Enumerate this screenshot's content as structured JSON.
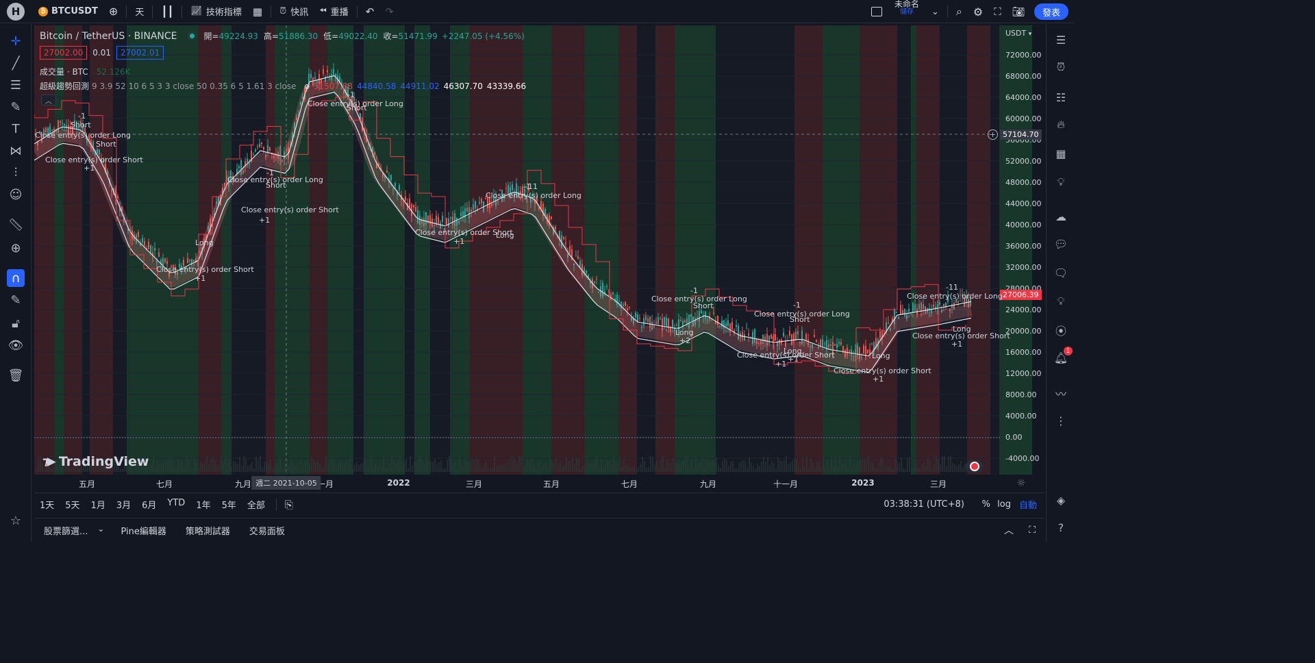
{
  "topbar": {
    "logo": "H",
    "symbol": "BTCUSDT",
    "interval": "天",
    "indicators": "技術指標",
    "alert": "快訊",
    "replay": "重播",
    "layout_title": "未命名",
    "layout_sub": "儲存",
    "publish": "發表"
  },
  "legend": {
    "title": "Bitcoin / TetherUS · BINANCE",
    "open_label": "開=",
    "open": "49224.93",
    "high_label": "高=",
    "high": "51886.30",
    "low_label": "低=",
    "low": "49022.40",
    "close_label": "收=",
    "close": "51471.99",
    "change": "+2247.05 (+4.56%)",
    "sell_price": "27002.00",
    "spread": "0.01",
    "buy_price": "27002.01",
    "volume_label": "成交量 · BTC",
    "volume_value": "52.126K",
    "indicator_name": "超級趨勢回測",
    "indicator_params": "9 3.9 52 10 6 5 3 3 close 50 0.35 6 5 1.61 3 close",
    "indicator_symbol": "ø",
    "ind_v1": "51507.88",
    "ind_v2": "44840.58",
    "ind_v3": "44911.02",
    "ind_v4": "46307.70",
    "ind_v5": "43339.66"
  },
  "price_axis": {
    "currency": "USDT",
    "labels": [
      "72000.00",
      "68000.00",
      "64000.00",
      "60000.00",
      "56000.00",
      "52000.00",
      "48000.00",
      "44000.00",
      "40000.00",
      "36000.00",
      "32000.00",
      "28000.00",
      "24000.00",
      "20000.00",
      "16000.00",
      "12000.00",
      "8000.00",
      "4000.00",
      "0.00",
      "-4000.00"
    ],
    "crosshair_price": "57104.70",
    "last_price": "27006.39"
  },
  "time_axis": {
    "labels": [
      "五月",
      "七月",
      "九月",
      "一月",
      "2022",
      "三月",
      "五月",
      "七月",
      "九月",
      "十一月",
      "2023",
      "三月"
    ],
    "cursor_date": "週二 2021-10-05"
  },
  "ranges": [
    "1天",
    "5天",
    "1月",
    "3月",
    "6月",
    "YTD",
    "1年",
    "5年",
    "全部"
  ],
  "clock": "03:38:31 (UTC+8)",
  "scale": {
    "pct": "%",
    "log": "log",
    "auto": "自動"
  },
  "bottom_tabs": [
    "股票篩選...",
    "Pine編輯器",
    "策略測試器",
    "交易面板"
  ],
  "watermark": "TradingView",
  "notification_count": "1",
  "annotations": [
    "-1",
    "Short",
    "Close entry(s) order Long",
    "Short",
    "+1",
    "Close entry(s) order Short",
    "-1",
    "Close entry(s) order Long",
    "Short",
    "-1",
    "Close entry(s) order Long",
    "Short",
    "Close entry(s) order Short",
    "+1",
    "Long",
    "Close entry(s) order Short",
    "+1",
    "Close entry(s) order Short",
    "+1",
    "Long",
    "-1",
    "-11",
    "Close entry(s) order Long",
    "-1",
    "Close entry(s) order Long",
    "Short",
    "Long",
    "+2",
    "-1",
    "Close entry(s) order Long",
    "Short",
    "Long",
    "Close entry(s) order Short",
    "+1",
    "+1",
    "Long",
    "Close entry(s) order Short",
    "+1",
    "-11",
    "Close entry(s) order Long",
    "Long",
    "Close entry(s) order Short",
    "+1"
  ],
  "colors": {
    "bg": "#131722",
    "bull_band": "#1b3a2b",
    "bear_band": "#3d1f26",
    "up": "#26a69a",
    "down": "#ef5350",
    "accent": "#2962ff"
  }
}
